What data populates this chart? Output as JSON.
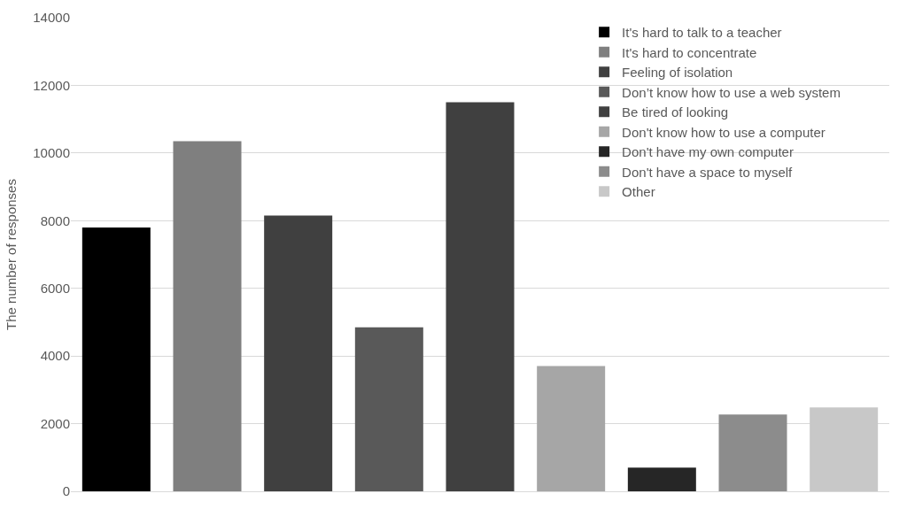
{
  "chart_data": {
    "type": "bar",
    "ylabel": "The number of responses",
    "categories": [
      null,
      null,
      null,
      null,
      null,
      null,
      null,
      null,
      null
    ],
    "series": [
      {
        "name": "It's hard to talk to a teacher",
        "color": "#000000",
        "values": [
          7800,
          null,
          null,
          null,
          null,
          null,
          null,
          null,
          null
        ]
      },
      {
        "name": "It's hard to concentrate",
        "color": "#7f7f7f",
        "values": [
          null,
          10350,
          null,
          null,
          null,
          null,
          null,
          null,
          null
        ]
      },
      {
        "name": "Feeling of isolation",
        "color": "#404040",
        "values": [
          null,
          null,
          8150,
          null,
          null,
          null,
          null,
          null,
          null
        ]
      },
      {
        "name": "Don’t know how to use a web system",
        "color": "#595959",
        "values": [
          null,
          null,
          null,
          4850,
          null,
          null,
          null,
          null,
          null
        ]
      },
      {
        "name": "Be tired of looking",
        "color": "#404040",
        "values": [
          null,
          null,
          null,
          null,
          11500,
          null,
          null,
          null,
          null
        ]
      },
      {
        "name": "Don't know how to use a computer",
        "color": "#a6a6a6",
        "values": [
          null,
          null,
          null,
          null,
          null,
          3700,
          null,
          null,
          null
        ]
      },
      {
        "name": "Don't have my own computer",
        "color": "#262626",
        "values": [
          null,
          null,
          null,
          null,
          null,
          null,
          700,
          null,
          null
        ]
      },
      {
        "name": "Don't have a space to myself",
        "color": "#8c8c8c",
        "values": [
          null,
          null,
          null,
          null,
          null,
          null,
          null,
          2270,
          null
        ]
      },
      {
        "name": "Other",
        "color": "#c8c8c8",
        "values": [
          null,
          null,
          null,
          null,
          null,
          null,
          null,
          null,
          2480
        ]
      }
    ],
    "ylim": [
      0,
      14000
    ],
    "yticks": [
      0,
      2000,
      4000,
      6000,
      8000,
      10000,
      12000,
      14000
    ],
    "grid": "y",
    "legend": "top right",
    "tick_labels": "y"
  }
}
